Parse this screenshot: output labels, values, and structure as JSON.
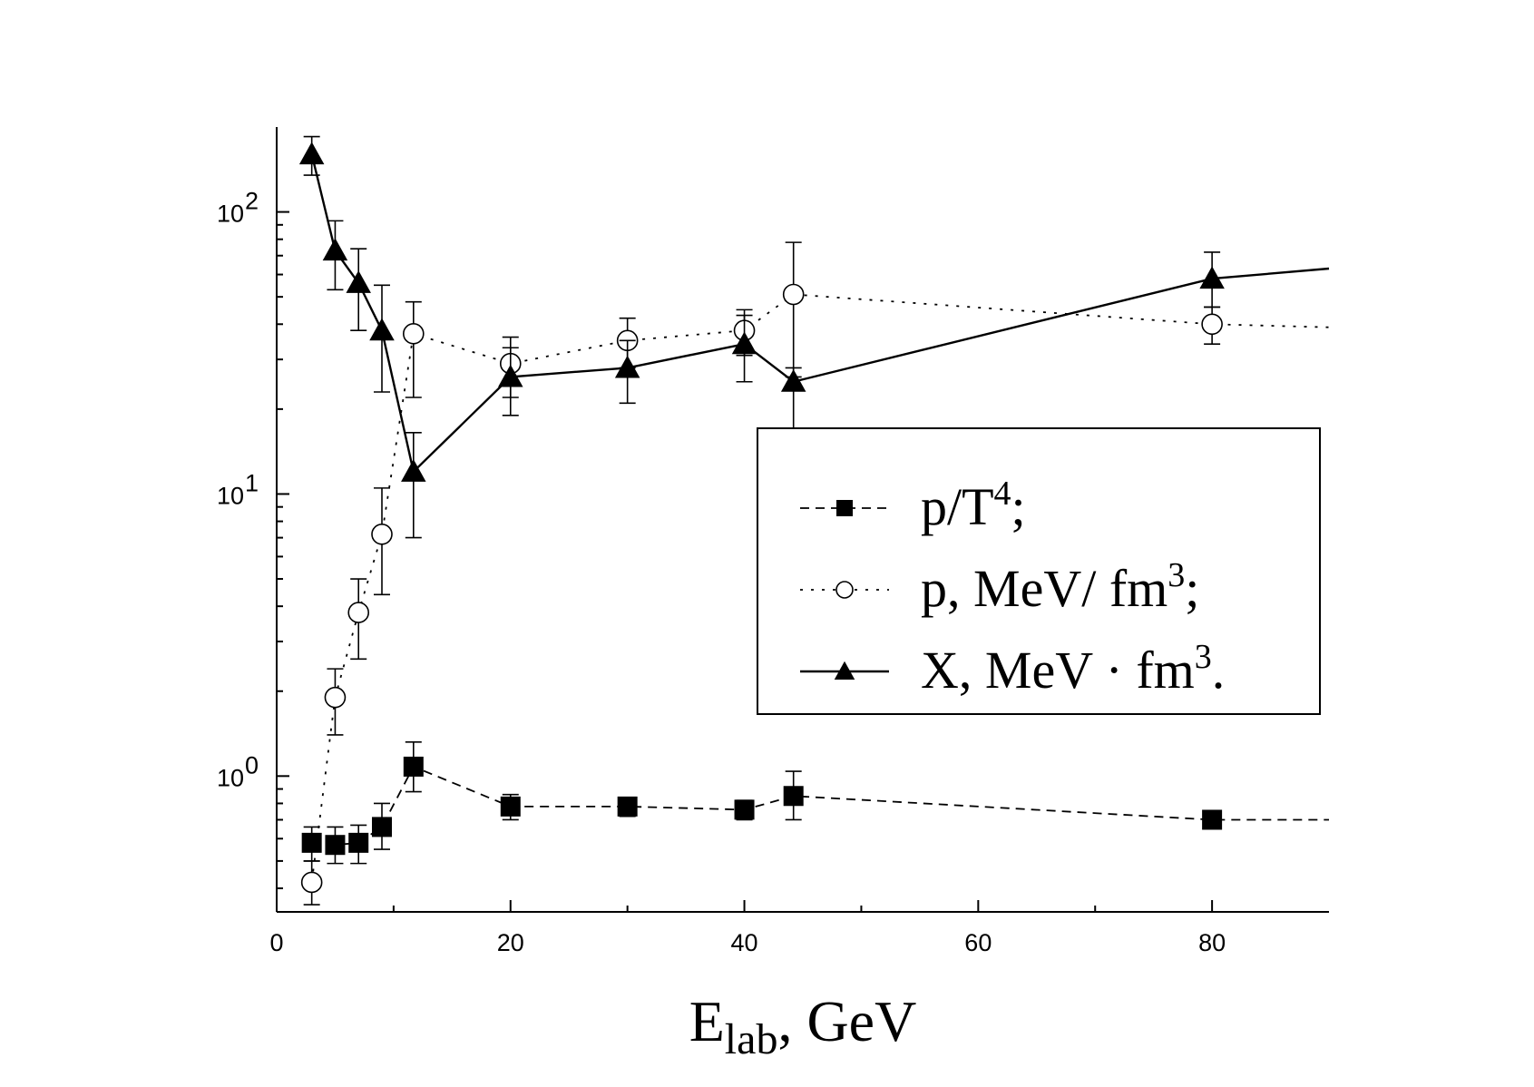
{
  "chart_data": {
    "type": "line",
    "title": "",
    "xlabel": {
      "main": "E",
      "subscript": "lab",
      "rest": ", GeV"
    },
    "ylabel": "",
    "x_scale": "linear",
    "y_scale": "log",
    "xlim": [
      0,
      90
    ],
    "ylim": [
      0.33,
      200
    ],
    "x_ticks": [
      {
        "value": 0,
        "label": "0"
      },
      {
        "value": 20,
        "label": "20"
      },
      {
        "value": 40,
        "label": "40"
      },
      {
        "value": 60,
        "label": "60"
      },
      {
        "value": 80,
        "label": "80"
      }
    ],
    "y_ticks": [
      {
        "value": 1,
        "base": "10",
        "exp": "0"
      },
      {
        "value": 10,
        "base": "10",
        "exp": "1"
      },
      {
        "value": 100,
        "base": "10",
        "exp": "2"
      }
    ],
    "legend_position": "right-center",
    "series": [
      {
        "name": "p/T4",
        "legend": {
          "base": "p/T",
          "sup": "4",
          "suffix": ";"
        },
        "marker": "filled-square",
        "line": "dashed",
        "points": [
          {
            "x": 3,
            "y": 0.58,
            "lo": 0.5,
            "hi": 0.66
          },
          {
            "x": 5,
            "y": 0.57,
            "lo": 0.49,
            "hi": 0.66
          },
          {
            "x": 7,
            "y": 0.58,
            "lo": 0.49,
            "hi": 0.67
          },
          {
            "x": 9,
            "y": 0.66,
            "lo": 0.55,
            "hi": 0.8
          },
          {
            "x": 11.7,
            "y": 1.08,
            "lo": 0.88,
            "hi": 1.32
          },
          {
            "x": 20,
            "y": 0.78,
            "lo": 0.7,
            "hi": 0.86
          },
          {
            "x": 30,
            "y": 0.78,
            "lo": 0.72,
            "hi": 0.84
          },
          {
            "x": 40,
            "y": 0.76,
            "lo": 0.7,
            "hi": 0.82
          },
          {
            "x": 44.2,
            "y": 0.85,
            "lo": 0.7,
            "hi": 1.04
          },
          {
            "x": 80,
            "y": 0.7,
            "lo": 0.67,
            "hi": 0.73
          },
          {
            "x": 90,
            "y": 0.7
          }
        ]
      },
      {
        "name": "p, MeV/fm3",
        "legend": {
          "base": "p, MeV/ fm",
          "sup": "3",
          "suffix": ";"
        },
        "marker": "open-circle",
        "line": "dotted",
        "points": [
          {
            "x": 3,
            "y": 0.42,
            "lo": 0.35,
            "hi": 0.5
          },
          {
            "x": 5,
            "y": 1.9,
            "lo": 1.4,
            "hi": 2.4
          },
          {
            "x": 7,
            "y": 3.8,
            "lo": 2.6,
            "hi": 5.0
          },
          {
            "x": 9,
            "y": 7.2,
            "lo": 4.4,
            "hi": 10.5
          },
          {
            "x": 11.7,
            "y": 37,
            "lo": 22,
            "hi": 48
          },
          {
            "x": 20,
            "y": 29,
            "lo": 22,
            "hi": 36
          },
          {
            "x": 30,
            "y": 35,
            "lo": 28,
            "hi": 42
          },
          {
            "x": 40,
            "y": 38,
            "lo": 31,
            "hi": 45
          },
          {
            "x": 44.2,
            "y": 51,
            "lo": 26,
            "hi": 78
          },
          {
            "x": 80,
            "y": 40,
            "lo": 34,
            "hi": 46
          },
          {
            "x": 90,
            "y": 39
          }
        ]
      },
      {
        "name": "X, MeV·fm3",
        "legend": {
          "base": "X, MeV · fm",
          "sup": "3",
          "suffix": "."
        },
        "marker": "filled-triangle",
        "line": "solid",
        "points": [
          {
            "x": 3,
            "y": 160,
            "lo": 135,
            "hi": 185
          },
          {
            "x": 5,
            "y": 73,
            "lo": 53,
            "hi": 93
          },
          {
            "x": 7,
            "y": 56,
            "lo": 38,
            "hi": 74
          },
          {
            "x": 9,
            "y": 38,
            "lo": 23,
            "hi": 55
          },
          {
            "x": 11.7,
            "y": 12,
            "lo": 7,
            "hi": 16.5
          },
          {
            "x": 20,
            "y": 26,
            "lo": 19,
            "hi": 33
          },
          {
            "x": 30,
            "y": 28,
            "lo": 21,
            "hi": 35
          },
          {
            "x": 40,
            "y": 34,
            "lo": 25,
            "hi": 43
          },
          {
            "x": 44.2,
            "y": 25,
            "lo": 17,
            "hi": 28
          },
          {
            "x": 80,
            "y": 58,
            "lo": 46,
            "hi": 72
          },
          {
            "x": 90,
            "y": 63
          }
        ]
      }
    ]
  }
}
